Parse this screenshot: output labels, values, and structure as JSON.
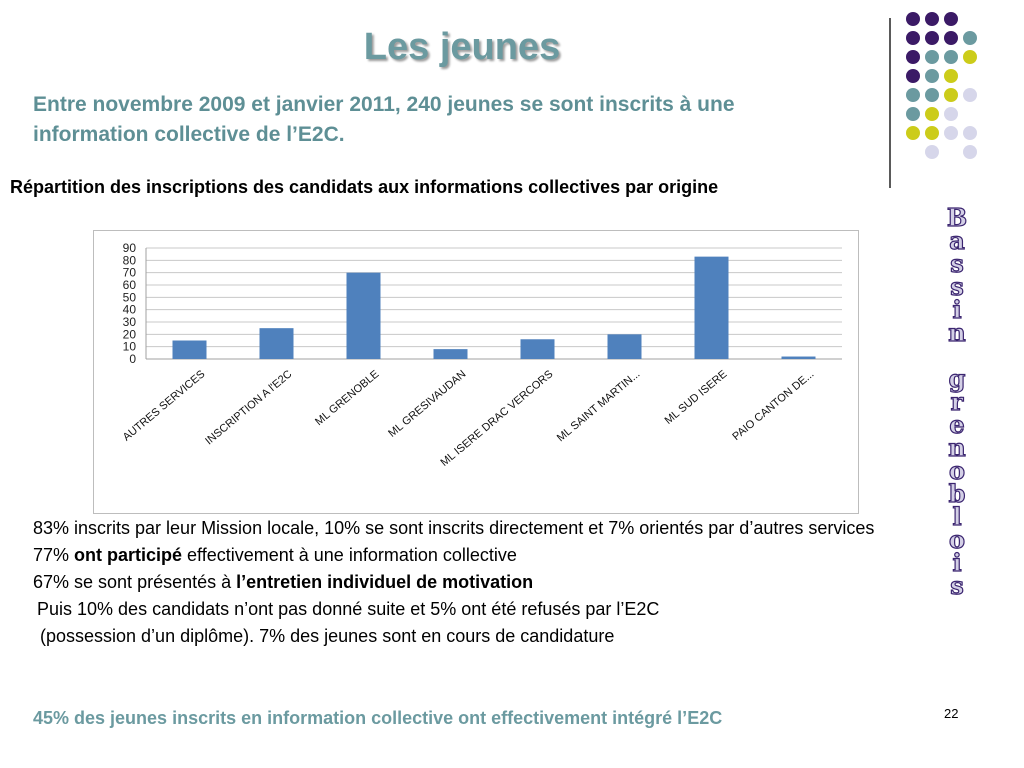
{
  "slide": {
    "title": "Les jeunes",
    "intro": "Entre novembre 2009 et janvier 2011, 240 jeunes se sont inscrits à une information collective de l’E2C.",
    "subtitle": "Répartition des inscriptions des candidats aux informations collectives par origine",
    "vertical_text": [
      "B",
      "a",
      "s",
      "s",
      "i",
      "n",
      "",
      "g",
      "r",
      "e",
      "n",
      "o",
      "b",
      "l",
      "o",
      "i",
      "s"
    ],
    "paragraphs": [
      {
        "pre": "83% inscrits par leur Mission locale, 10% se sont inscrits directement et 7% orientés par d’autres services",
        "bold": "",
        "post": ""
      },
      {
        "pre": "77% ",
        "bold": "ont participé",
        "post": " effectivement à une information collective"
      },
      {
        "pre": "67% se sont présentés à ",
        "bold": "l’entretien individuel de motivation",
        "post": ""
      },
      {
        "pre": "Puis 10% des candidats n’ont pas donné suite et 5% ont été refusés par l’E2C",
        "bold": "",
        "post": ""
      },
      {
        "pre": "(possession d’un diplôme). 7% des jeunes sont en cours de candidature",
        "bold": "",
        "post": ""
      }
    ],
    "footer": "45% des jeunes inscrits en information collective ont effectivement intégré l’E2C",
    "page_number": "22"
  },
  "colors": {
    "title": "#6b9aa0",
    "bar": "#4f81bd",
    "dot_purple": "#3b1a66",
    "dot_teal": "#6b9aa0",
    "dot_yellow": "#cccc1a",
    "dot_lavender": "#d6d6ea"
  },
  "decor_dots": [
    [
      "dot_purple",
      "dot_purple",
      "dot_purple",
      null
    ],
    [
      "dot_purple",
      "dot_purple",
      "dot_purple",
      "dot_teal"
    ],
    [
      "dot_purple",
      "dot_teal",
      "dot_teal",
      "dot_yellow"
    ],
    [
      "dot_purple",
      "dot_teal",
      "dot_yellow",
      null
    ],
    [
      "dot_teal",
      "dot_teal",
      "dot_yellow",
      "dot_lavender"
    ],
    [
      "dot_teal",
      "dot_yellow",
      "dot_lavender",
      null
    ],
    [
      "dot_yellow",
      "dot_yellow",
      "dot_lavender",
      "dot_lavender"
    ],
    [
      null,
      "dot_lavender",
      null,
      "dot_lavender"
    ]
  ],
  "chart_data": {
    "type": "bar",
    "categories": [
      "AUTRES SERVICES",
      "INSCRIPTION A l'E2C",
      "ML GRENOBLE",
      "ML GRESIVAUDAN",
      "ML ISERE DRAC VERCORS",
      "ML SAINT MARTIN...",
      "ML SUD ISERE",
      "PAIO CANTON DE..."
    ],
    "values": [
      15,
      25,
      70,
      8,
      16,
      20,
      83,
      2
    ],
    "ylim": [
      0,
      90
    ],
    "yticks": [
      0,
      10,
      20,
      30,
      40,
      50,
      60,
      70,
      80,
      90
    ],
    "grid": true,
    "legend": "none",
    "title": "",
    "xlabel": "",
    "ylabel": ""
  }
}
